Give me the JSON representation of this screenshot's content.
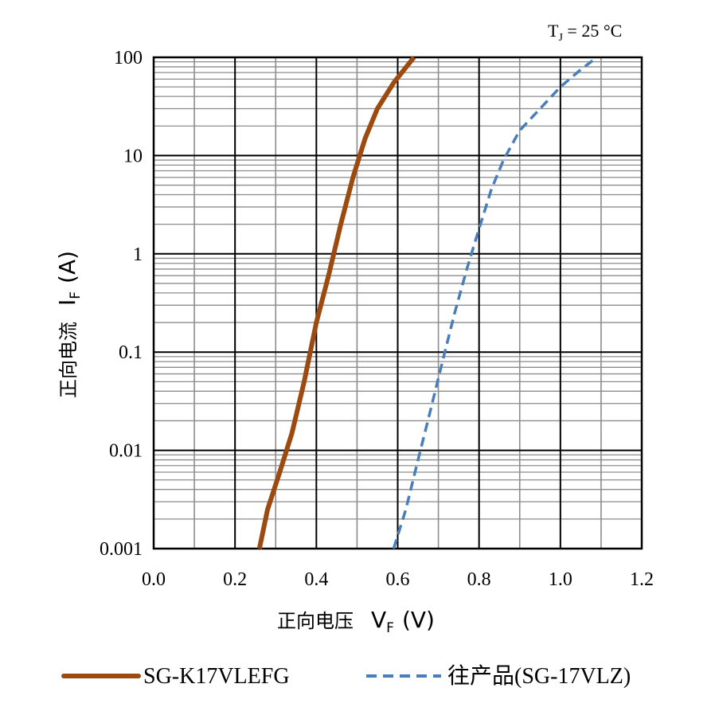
{
  "chart_data": {
    "type": "line",
    "title": "",
    "annotation": {
      "main": "T",
      "sub": "J",
      "rest": " = 25 °C"
    },
    "xlabel": {
      "prefix": "正向电压",
      "symbol": "V",
      "sub": "F",
      "unit": "(V)"
    },
    "ylabel": {
      "prefix": "正向电流",
      "symbol": "I",
      "sub": "F",
      "unit": "(A)"
    },
    "xlim": [
      0.0,
      1.2
    ],
    "ylim": [
      0.001,
      100
    ],
    "yscale": "log",
    "x_ticks": [
      "0.0",
      "0.2",
      "0.4",
      "0.6",
      "0.8",
      "1.0",
      "1.2"
    ],
    "y_ticks": [
      "0.001",
      "0.01",
      "0.1",
      "1",
      "10",
      "100"
    ],
    "grid": true,
    "legend_position": "bottom",
    "series": [
      {
        "name": "SG-K17VLEFG",
        "color": "#9c4a10",
        "style": "solid",
        "points": [
          [
            0.26,
            0.001
          ],
          [
            0.28,
            0.0025
          ],
          [
            0.31,
            0.006
          ],
          [
            0.34,
            0.015
          ],
          [
            0.37,
            0.05
          ],
          [
            0.4,
            0.2
          ],
          [
            0.43,
            0.6
          ],
          [
            0.46,
            2.0
          ],
          [
            0.49,
            6.0
          ],
          [
            0.52,
            15
          ],
          [
            0.55,
            30
          ],
          [
            0.59,
            55
          ],
          [
            0.64,
            100
          ]
        ]
      },
      {
        "name": "往产品(SG-17VLZ)",
        "color": "#4a7ebb",
        "style": "dashed",
        "points": [
          [
            0.59,
            0.001
          ],
          [
            0.62,
            0.0025
          ],
          [
            0.65,
            0.008
          ],
          [
            0.68,
            0.025
          ],
          [
            0.71,
            0.08
          ],
          [
            0.74,
            0.25
          ],
          [
            0.77,
            0.7
          ],
          [
            0.8,
            1.8
          ],
          [
            0.83,
            4.5
          ],
          [
            0.86,
            9
          ],
          [
            0.9,
            18
          ],
          [
            0.95,
            30
          ],
          [
            1.0,
            50
          ],
          [
            1.05,
            75
          ],
          [
            1.09,
            100
          ]
        ]
      }
    ]
  }
}
